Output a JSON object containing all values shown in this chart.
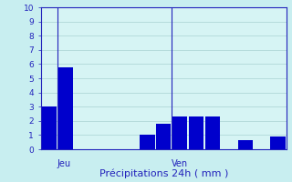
{
  "values": [
    3.0,
    5.8,
    0,
    0,
    0,
    0,
    1.0,
    1.8,
    2.3,
    2.3,
    2.3,
    0,
    0.65,
    0,
    0.9
  ],
  "bar_color": "#0000CC",
  "background_color": "#C8EEF0",
  "plot_bg_color": "#D6F4F4",
  "grid_color": "#B0D8D8",
  "text_color": "#2222BB",
  "xlabel": "Précipitations 24h ( mm )",
  "ylim": [
    0,
    10
  ],
  "yticks": [
    0,
    1,
    2,
    3,
    4,
    5,
    6,
    7,
    8,
    9,
    10
  ],
  "day_labels": [
    {
      "text": "Jeu",
      "bar_index": 1
    },
    {
      "text": "Ven",
      "bar_index": 8
    }
  ],
  "xlabel_fontsize": 8,
  "tick_fontsize": 6.5,
  "day_label_fontsize": 7
}
